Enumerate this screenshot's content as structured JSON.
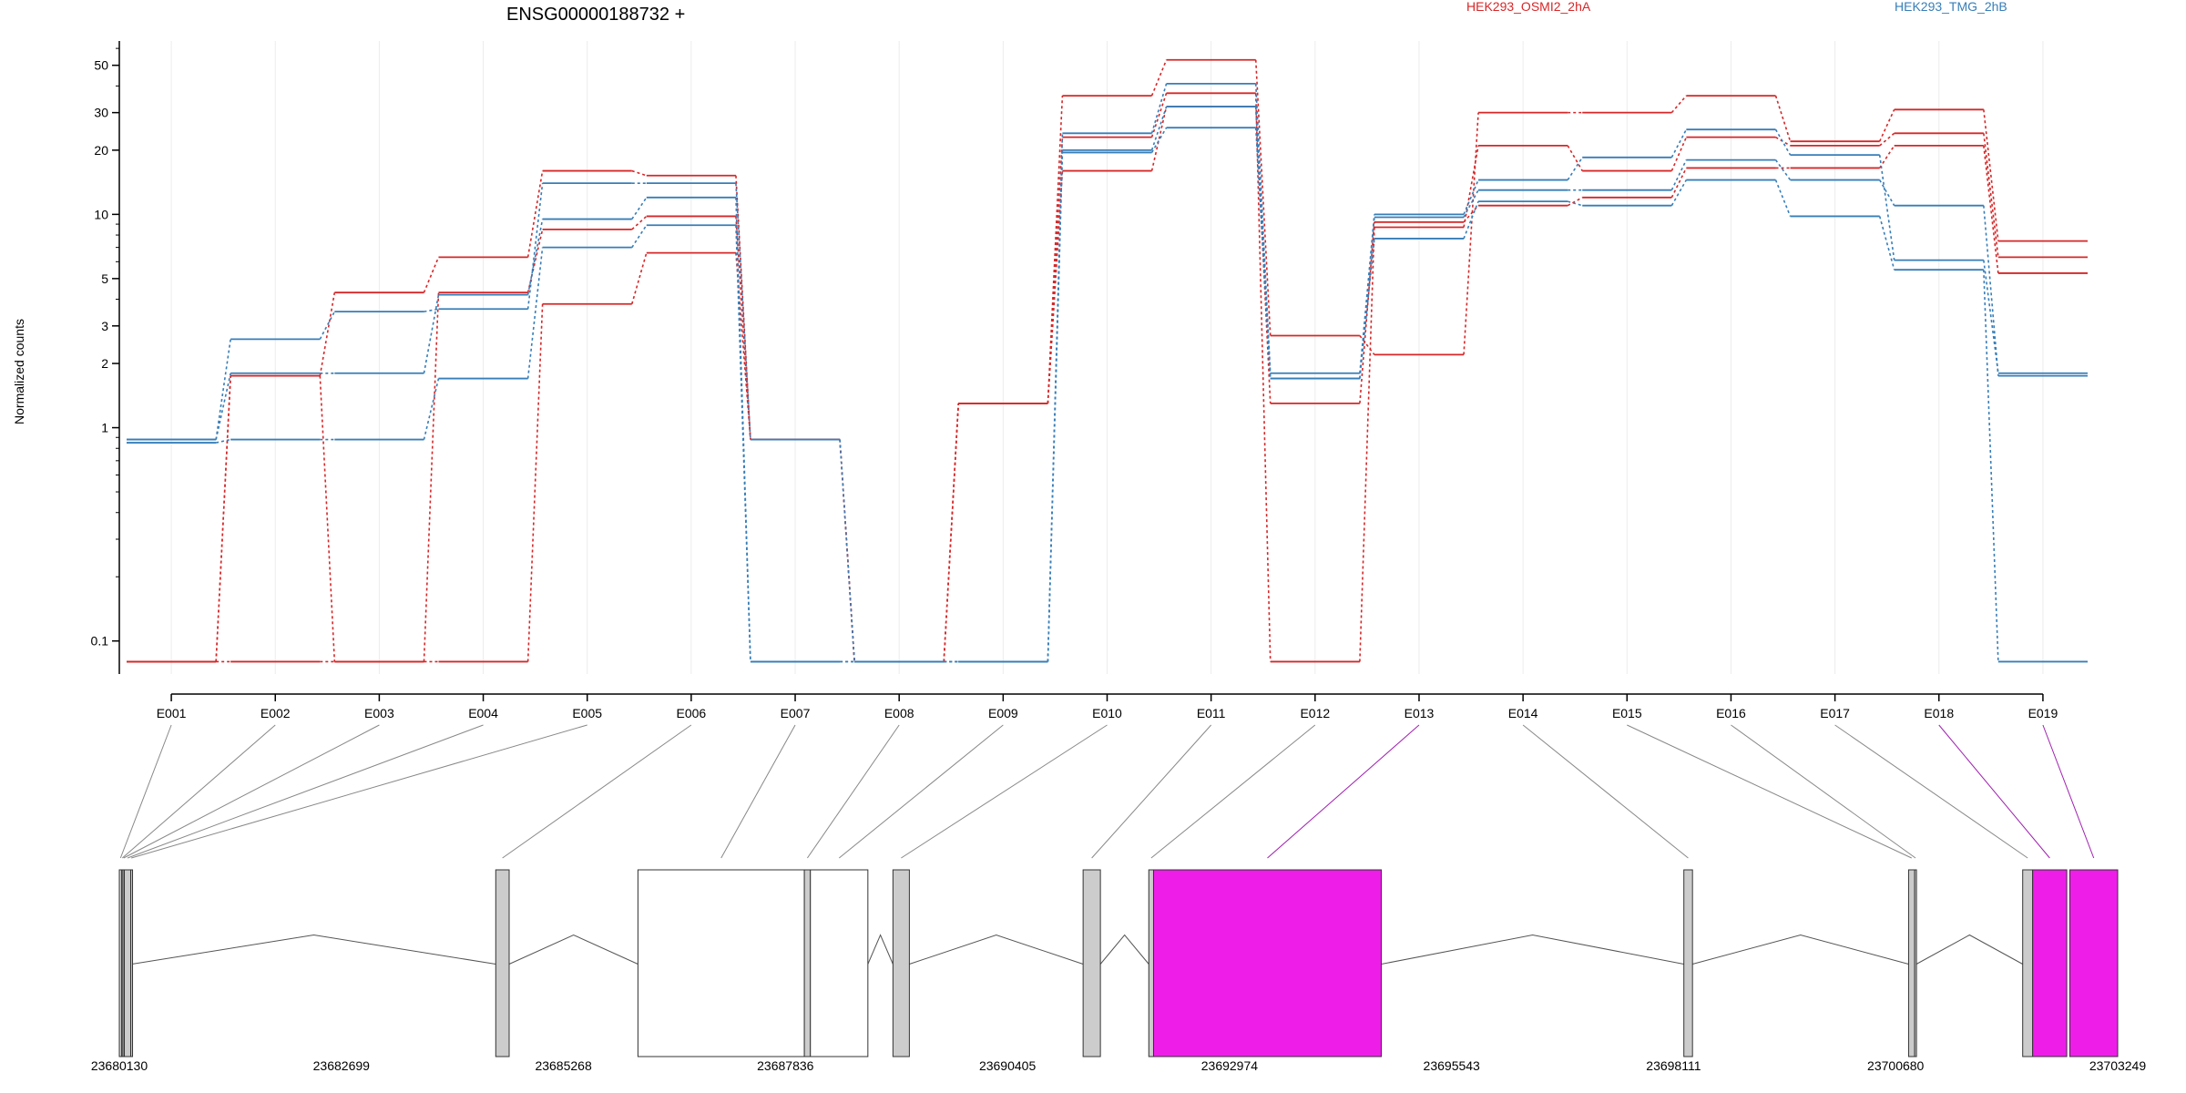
{
  "chart_data": {
    "type": "line",
    "title": "ENSG00000188732 +",
    "ylabel": "Normalized counts",
    "y_scale": "log",
    "ylim": [
      0.07,
      65
    ],
    "y_ticks": [
      0.1,
      1,
      2,
      3,
      5,
      10,
      20,
      30,
      50
    ],
    "grid": true,
    "legend_position": "top",
    "colors": {
      "HEK293_OSMI2_2hA": "#d62728",
      "HEK293_TMG_2hB": "#377eb8",
      "highlight": "#ee1ee8"
    },
    "categories": [
      "E001",
      "E002",
      "E003",
      "E004",
      "E005",
      "E006",
      "E007",
      "E008",
      "E009",
      "E010",
      "E011",
      "E012",
      "E013",
      "E014",
      "E015",
      "E016",
      "E017",
      "E018",
      "E019"
    ],
    "series": [
      {
        "name": "HEK293_OSMI2_2hA",
        "color": "#d62728",
        "values": [
          0.08,
          1.75,
          4.3,
          6.3,
          16,
          15.2,
          0.88,
          0.08,
          1.3,
          36,
          53,
          2.7,
          2.2,
          30,
          30,
          36,
          22,
          31,
          7.5
        ]
      },
      {
        "name": "HEK293_OSMI2_2hA",
        "color": "#d62728",
        "values": [
          0.08,
          1.75,
          0.08,
          4.3,
          8.5,
          9.8,
          0.88,
          0.08,
          1.3,
          23,
          37,
          0.08,
          8.7,
          21,
          16,
          23,
          21,
          24,
          6.3
        ]
      },
      {
        "name": "HEK293_OSMI2_2hA",
        "color": "#d62728",
        "values": [
          0.08,
          0.08,
          0.08,
          0.08,
          3.8,
          6.6,
          0.88,
          0.08,
          1.3,
          16,
          32,
          1.3,
          9.2,
          11,
          12,
          16.5,
          16.5,
          21,
          5.3
        ]
      },
      {
        "name": "HEK293_TMG_2hB",
        "color": "#377eb8",
        "values": [
          0.88,
          2.6,
          3.5,
          3.6,
          14,
          14,
          0.88,
          0.08,
          0.08,
          24,
          41,
          1.8,
          10,
          14.5,
          18.5,
          25,
          19,
          6.1,
          1.8
        ]
      },
      {
        "name": "HEK293_TMG_2hB",
        "color": "#377eb8",
        "values": [
          0.88,
          1.8,
          1.8,
          4.2,
          9.5,
          12,
          0.08,
          0.08,
          0.08,
          20,
          32,
          1.7,
          9.7,
          13,
          13,
          18,
          14.5,
          11,
          1.75
        ]
      },
      {
        "name": "HEK293_TMG_2hB",
        "color": "#377eb8",
        "values": [
          0.85,
          0.88,
          0.88,
          1.7,
          7,
          8.9,
          0.08,
          0.08,
          0.08,
          19.5,
          25.5,
          1.7,
          7.7,
          11.5,
          11,
          14.5,
          9.8,
          5.5,
          0.08
        ]
      }
    ],
    "gene_model": {
      "start": 23680130,
      "end": 23703249,
      "coordinate_ticks": [
        23680130,
        23682699,
        23685268,
        23687836,
        23690405,
        23692974,
        23695543,
        23698111,
        23700680,
        23703249
      ],
      "exons": [
        {
          "id": "E001",
          "start": 23680130,
          "end": 23680158,
          "highlight": false
        },
        {
          "id": "E002",
          "start": 23680158,
          "end": 23680172,
          "highlight": false
        },
        {
          "id": "E003",
          "start": 23680172,
          "end": 23680188,
          "highlight": false
        },
        {
          "id": "E004",
          "start": 23680188,
          "end": 23680262,
          "highlight": false
        },
        {
          "id": "E005",
          "start": 23680262,
          "end": 23680275,
          "highlight": false
        },
        {
          "id": "E006",
          "start": 23684485,
          "end": 23684640,
          "highlight": false
        },
        {
          "id": "E007",
          "start": 23686130,
          "end": 23688055,
          "highlight": false
        },
        {
          "id": "E008",
          "start": 23688055,
          "end": 23688125,
          "highlight": false
        },
        {
          "id": "E009",
          "start": 23688125,
          "end": 23688790,
          "highlight": false
        },
        {
          "id": "E010",
          "start": 23689080,
          "end": 23689270,
          "highlight": false
        },
        {
          "id": "E011",
          "start": 23691280,
          "end": 23691480,
          "highlight": false
        },
        {
          "id": "E012",
          "start": 23692040,
          "end": 23692095,
          "highlight": false
        },
        {
          "id": "E013",
          "start": 23692095,
          "end": 23694730,
          "highlight": true
        },
        {
          "id": "E014",
          "start": 23698230,
          "end": 23698330,
          "highlight": false
        },
        {
          "id": "E015",
          "start": 23700830,
          "end": 23700900,
          "highlight": false
        },
        {
          "id": "E016",
          "start": 23700900,
          "end": 23700920,
          "highlight": false
        },
        {
          "id": "E017",
          "start": 23702150,
          "end": 23702265,
          "highlight": false
        },
        {
          "id": "E018",
          "start": 23702265,
          "end": 23702660,
          "highlight": true
        },
        {
          "id": "E019",
          "start": 23702695,
          "end": 23703249,
          "highlight": true
        }
      ],
      "introns": [
        [
          23680275,
          23684485
        ],
        [
          23684640,
          23686130
        ],
        [
          23688790,
          23689080
        ],
        [
          23689270,
          23691280
        ],
        [
          23691480,
          23692040
        ],
        [
          23694730,
          23698230
        ],
        [
          23698330,
          23700830
        ],
        [
          23700920,
          23702150
        ]
      ]
    }
  }
}
